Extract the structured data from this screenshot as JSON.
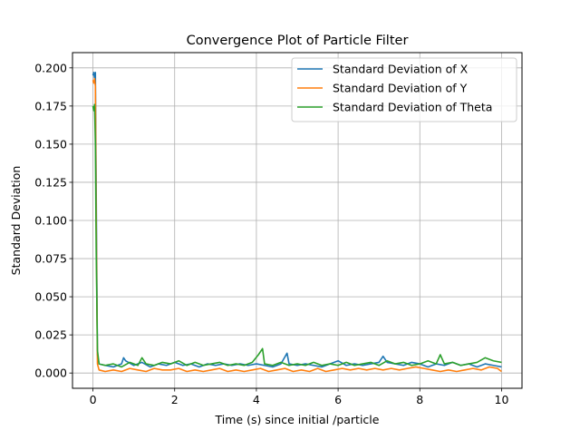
{
  "chart_data": {
    "type": "line",
    "title": "Convergence Plot of Particle Filter",
    "xlabel": "Time (s) since initial /particle",
    "ylabel": "Standard Deviation",
    "xlim": [
      -0.5,
      10.5
    ],
    "ylim": [
      -0.01,
      0.21
    ],
    "x_ticks": [
      0,
      2,
      4,
      6,
      8,
      10
    ],
    "x_tick_labels": [
      "0",
      "2",
      "4",
      "6",
      "8",
      "10"
    ],
    "y_ticks": [
      0.0,
      0.025,
      0.05,
      0.075,
      0.1,
      0.125,
      0.15,
      0.175,
      0.2
    ],
    "y_tick_labels": [
      "0.000",
      "0.025",
      "0.050",
      "0.075",
      "0.100",
      "0.125",
      "0.150",
      "0.175",
      "0.200"
    ],
    "grid": true,
    "legend_position": "top-right",
    "series": [
      {
        "name": "Standard Deviation of X",
        "color": "#1f77b4",
        "points": [
          [
            0,
            0.195
          ],
          [
            0.02,
            0.197
          ],
          [
            0.04,
            0.193
          ],
          [
            0.06,
            0.197
          ],
          [
            0.08,
            0.12
          ],
          [
            0.11,
            0.012
          ],
          [
            0.15,
            0.006
          ],
          [
            0.3,
            0.005
          ],
          [
            0.5,
            0.004
          ],
          [
            0.7,
            0.006
          ],
          [
            0.75,
            0.01
          ],
          [
            0.8,
            0.008
          ],
          [
            1.0,
            0.005
          ],
          [
            1.2,
            0.007
          ],
          [
            1.4,
            0.004
          ],
          [
            1.6,
            0.006
          ],
          [
            1.8,
            0.005
          ],
          [
            2.0,
            0.007
          ],
          [
            2.2,
            0.005
          ],
          [
            2.4,
            0.006
          ],
          [
            2.6,
            0.004
          ],
          [
            2.8,
            0.006
          ],
          [
            3.0,
            0.005
          ],
          [
            3.2,
            0.006
          ],
          [
            3.4,
            0.005
          ],
          [
            3.6,
            0.006
          ],
          [
            3.8,
            0.005
          ],
          [
            4.0,
            0.006
          ],
          [
            4.2,
            0.005
          ],
          [
            4.4,
            0.004
          ],
          [
            4.6,
            0.006
          ],
          [
            4.75,
            0.013
          ],
          [
            4.8,
            0.006
          ],
          [
            5.0,
            0.005
          ],
          [
            5.2,
            0.006
          ],
          [
            5.4,
            0.005
          ],
          [
            5.6,
            0.004
          ],
          [
            5.8,
            0.006
          ],
          [
            6.0,
            0.008
          ],
          [
            6.2,
            0.005
          ],
          [
            6.4,
            0.006
          ],
          [
            6.6,
            0.005
          ],
          [
            6.8,
            0.006
          ],
          [
            7.0,
            0.007
          ],
          [
            7.1,
            0.011
          ],
          [
            7.2,
            0.007
          ],
          [
            7.4,
            0.006
          ],
          [
            7.6,
            0.005
          ],
          [
            7.8,
            0.007
          ],
          [
            8.0,
            0.006
          ],
          [
            8.2,
            0.004
          ],
          [
            8.4,
            0.006
          ],
          [
            8.6,
            0.005
          ],
          [
            8.8,
            0.007
          ],
          [
            9.0,
            0.005
          ],
          [
            9.2,
            0.006
          ],
          [
            9.4,
            0.004
          ],
          [
            9.6,
            0.006
          ],
          [
            9.8,
            0.005
          ],
          [
            10.0,
            0.004
          ]
        ]
      },
      {
        "name": "Standard Deviation of Y",
        "color": "#ff7f0e",
        "points": [
          [
            0,
            0.192
          ],
          [
            0.02,
            0.19
          ],
          [
            0.04,
            0.193
          ],
          [
            0.06,
            0.188
          ],
          [
            0.08,
            0.1
          ],
          [
            0.11,
            0.006
          ],
          [
            0.15,
            0.002
          ],
          [
            0.3,
            0.001
          ],
          [
            0.5,
            0.002
          ],
          [
            0.7,
            0.001
          ],
          [
            0.9,
            0.003
          ],
          [
            1.1,
            0.002
          ],
          [
            1.3,
            0.001
          ],
          [
            1.5,
            0.003
          ],
          [
            1.7,
            0.002
          ],
          [
            1.9,
            0.002
          ],
          [
            2.1,
            0.003
          ],
          [
            2.3,
            0.001
          ],
          [
            2.5,
            0.002
          ],
          [
            2.7,
            0.001
          ],
          [
            2.9,
            0.002
          ],
          [
            3.1,
            0.003
          ],
          [
            3.3,
            0.001
          ],
          [
            3.5,
            0.002
          ],
          [
            3.7,
            0.001
          ],
          [
            3.9,
            0.002
          ],
          [
            4.1,
            0.003
          ],
          [
            4.3,
            0.001
          ],
          [
            4.5,
            0.002
          ],
          [
            4.7,
            0.003
          ],
          [
            4.9,
            0.001
          ],
          [
            5.1,
            0.002
          ],
          [
            5.3,
            0.001
          ],
          [
            5.5,
            0.003
          ],
          [
            5.7,
            0.001
          ],
          [
            5.9,
            0.002
          ],
          [
            6.1,
            0.003
          ],
          [
            6.3,
            0.002
          ],
          [
            6.5,
            0.003
          ],
          [
            6.7,
            0.002
          ],
          [
            6.9,
            0.003
          ],
          [
            7.1,
            0.002
          ],
          [
            7.3,
            0.003
          ],
          [
            7.5,
            0.002
          ],
          [
            7.7,
            0.003
          ],
          [
            7.9,
            0.004
          ],
          [
            8.1,
            0.003
          ],
          [
            8.3,
            0.002
          ],
          [
            8.5,
            0.001
          ],
          [
            8.7,
            0.002
          ],
          [
            8.9,
            0.001
          ],
          [
            9.1,
            0.002
          ],
          [
            9.3,
            0.003
          ],
          [
            9.5,
            0.002
          ],
          [
            9.7,
            0.004
          ],
          [
            9.9,
            0.003
          ],
          [
            10.0,
            0.001
          ]
        ]
      },
      {
        "name": "Standard Deviation of Theta",
        "color": "#2ca02c",
        "points": [
          [
            0,
            0.175
          ],
          [
            0.02,
            0.172
          ],
          [
            0.04,
            0.176
          ],
          [
            0.06,
            0.15
          ],
          [
            0.08,
            0.08
          ],
          [
            0.11,
            0.015
          ],
          [
            0.15,
            0.006
          ],
          [
            0.3,
            0.005
          ],
          [
            0.5,
            0.006
          ],
          [
            0.7,
            0.004
          ],
          [
            0.9,
            0.007
          ],
          [
            1.1,
            0.005
          ],
          [
            1.2,
            0.01
          ],
          [
            1.3,
            0.006
          ],
          [
            1.5,
            0.005
          ],
          [
            1.7,
            0.007
          ],
          [
            1.9,
            0.006
          ],
          [
            2.1,
            0.008
          ],
          [
            2.3,
            0.005
          ],
          [
            2.5,
            0.007
          ],
          [
            2.7,
            0.005
          ],
          [
            2.9,
            0.006
          ],
          [
            3.1,
            0.007
          ],
          [
            3.3,
            0.005
          ],
          [
            3.5,
            0.006
          ],
          [
            3.7,
            0.005
          ],
          [
            3.9,
            0.007
          ],
          [
            4.05,
            0.012
          ],
          [
            4.15,
            0.016
          ],
          [
            4.2,
            0.006
          ],
          [
            4.4,
            0.005
          ],
          [
            4.6,
            0.007
          ],
          [
            4.8,
            0.005
          ],
          [
            5.0,
            0.006
          ],
          [
            5.2,
            0.005
          ],
          [
            5.4,
            0.007
          ],
          [
            5.6,
            0.005
          ],
          [
            5.8,
            0.006
          ],
          [
            6.0,
            0.005
          ],
          [
            6.2,
            0.007
          ],
          [
            6.4,
            0.005
          ],
          [
            6.6,
            0.006
          ],
          [
            6.8,
            0.007
          ],
          [
            7.0,
            0.005
          ],
          [
            7.2,
            0.008
          ],
          [
            7.4,
            0.006
          ],
          [
            7.6,
            0.007
          ],
          [
            7.8,
            0.005
          ],
          [
            8.0,
            0.006
          ],
          [
            8.2,
            0.008
          ],
          [
            8.4,
            0.006
          ],
          [
            8.5,
            0.012
          ],
          [
            8.6,
            0.006
          ],
          [
            8.8,
            0.007
          ],
          [
            9.0,
            0.005
          ],
          [
            9.2,
            0.006
          ],
          [
            9.4,
            0.007
          ],
          [
            9.6,
            0.01
          ],
          [
            9.8,
            0.008
          ],
          [
            10.0,
            0.007
          ]
        ]
      }
    ]
  }
}
